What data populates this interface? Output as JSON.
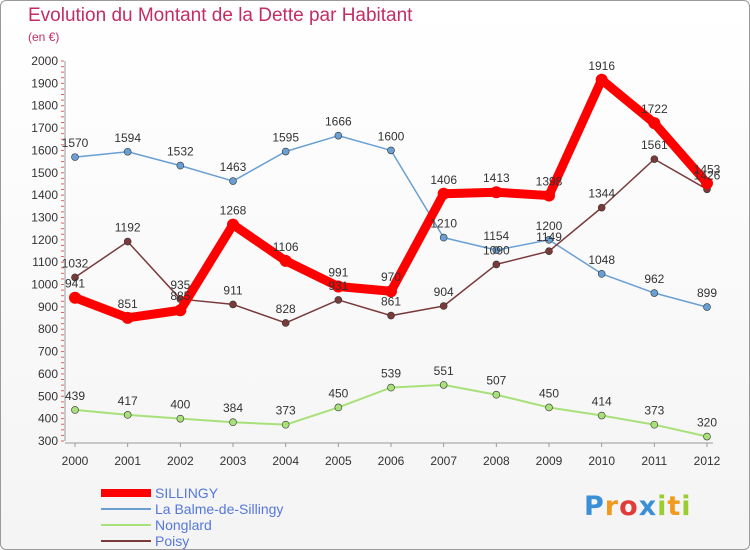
{
  "header": {
    "title": "Evolution du Montant de la Dette par Habitant",
    "unit": "(en €)"
  },
  "chart_data": {
    "type": "line",
    "title": "Evolution du Montant de la Dette par Habitant",
    "subtitle": "(en €)",
    "xlabel": "",
    "ylabel": "",
    "categories": [
      "2000",
      "2001",
      "2002",
      "2003",
      "2004",
      "2005",
      "2006",
      "2007",
      "2008",
      "2009",
      "2010",
      "2011",
      "2012"
    ],
    "ylim": [
      300,
      2000
    ],
    "yticks": [
      300,
      400,
      500,
      600,
      700,
      800,
      900,
      1000,
      1100,
      1200,
      1300,
      1400,
      1500,
      1600,
      1700,
      1800,
      1900,
      2000
    ],
    "grid": false,
    "legend_position": "bottom-left",
    "series": [
      {
        "name": "SILLINGY",
        "color": "#ff0000",
        "values": [
          941,
          851,
          885,
          1268,
          1106,
          991,
          970,
          1406,
          1413,
          1398,
          1916,
          1722,
          1453
        ],
        "labels": [
          "941",
          "851",
          "885",
          "1268",
          "1106",
          "991",
          "970",
          "1406",
          "1413",
          "1398",
          "1916",
          "1722",
          "1453"
        ]
      },
      {
        "name": "La Balme-de-Sillingy",
        "color": "#6a9fd4",
        "values": [
          1570,
          1594,
          1532,
          1463,
          1595,
          1666,
          1600,
          1210,
          1154,
          1200,
          1048,
          962,
          899
        ],
        "labels": [
          "1570",
          "1594",
          "1532",
          "1463",
          "1595",
          "1666",
          "1600",
          "1210",
          "1154",
          "1200",
          "1048",
          "962",
          "899"
        ]
      },
      {
        "name": "Nonglard",
        "color": "#a8e07a",
        "values": [
          439,
          417,
          400,
          384,
          373,
          450,
          539,
          551,
          507,
          450,
          414,
          373,
          320
        ],
        "labels": [
          "439",
          "417",
          "400",
          "384",
          "373",
          "450",
          "539",
          "551",
          "507",
          "450",
          "414",
          "373",
          "320"
        ]
      },
      {
        "name": "Poisy",
        "color": "#7a3a3a",
        "values": [
          1032,
          1192,
          935,
          911,
          828,
          931,
          861,
          904,
          1090,
          1149,
          1344,
          1561,
          1426
        ],
        "labels": [
          "1032",
          "1192",
          "935",
          "911",
          "828",
          "931",
          "861",
          "904",
          "1090",
          "1149",
          "1344",
          "1561",
          "1426"
        ]
      }
    ]
  },
  "logo": {
    "letters": [
      "P",
      "r",
      "o",
      "x",
      "i",
      "t",
      "i"
    ],
    "colors": [
      "#3b8fd6",
      "#f29a1f",
      "#e23b3b",
      "#3b8fd6",
      "#9acd32",
      "#f29a1f",
      "#9acd32"
    ]
  }
}
